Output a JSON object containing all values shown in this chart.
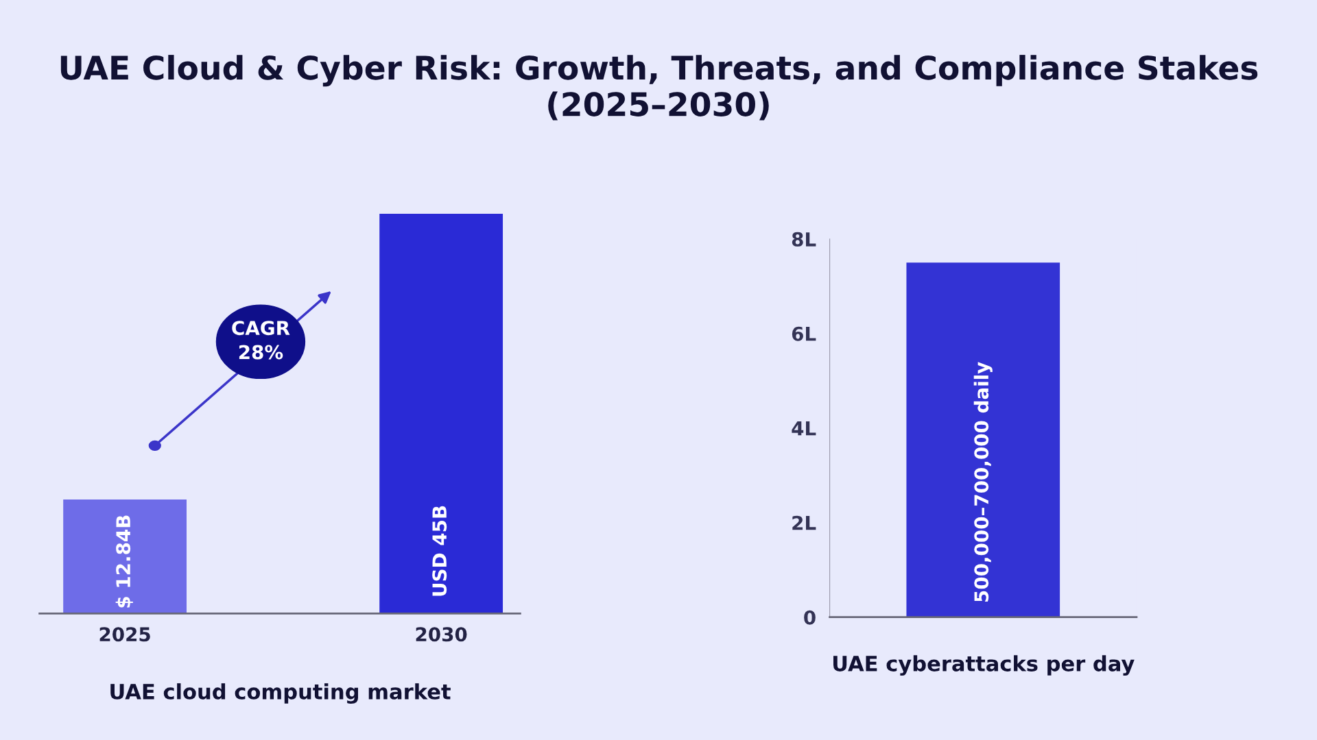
{
  "chart_data": [
    {
      "type": "bar",
      "categories": [
        "2025",
        "2030"
      ],
      "values": [
        12.84,
        45
      ],
      "colors": [
        "#6e6ce8",
        "#2a2ad6"
      ],
      "value_labels": [
        "$ 12.84B",
        "USD 45B"
      ],
      "xlabel": "UAE cloud computing market",
      "title": "UAE Cloud & Cyber Risk: Growth, Threats, and Compliance Stakes (2025–2030)",
      "annotations": [
        "CAGR\n28%"
      ],
      "tick_labels": "x",
      "grid": false
    },
    {
      "type": "bar",
      "categories": [
        null
      ],
      "values": [
        7.5
      ],
      "colors": [
        "#3333d4"
      ],
      "value_labels": [
        "500,000–700,000 daily"
      ],
      "xlabel": "UAE cyberattacks per day",
      "ylim": [
        0,
        8
      ],
      "yticks": [
        {
          "value": 0,
          "label": "0"
        },
        {
          "value": 2,
          "label": "2L"
        },
        {
          "value": 4,
          "label": "4L"
        },
        {
          "value": 6,
          "label": "6L"
        },
        {
          "value": 8,
          "label": "8L"
        }
      ],
      "tick_labels": "y",
      "grid": false
    }
  ]
}
